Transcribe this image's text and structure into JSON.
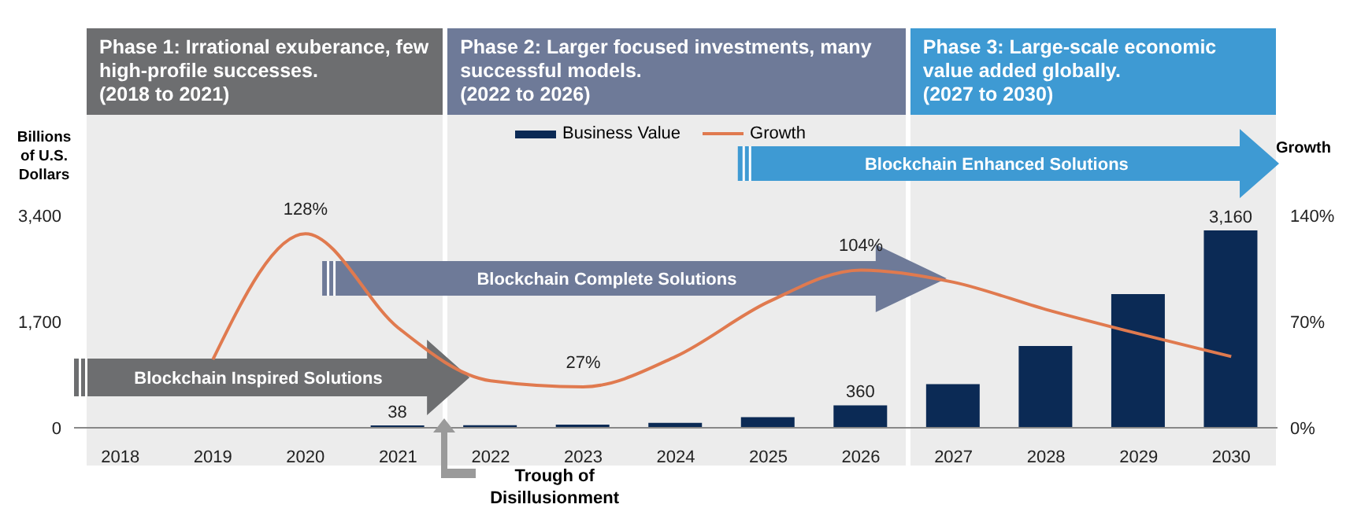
{
  "chart_data": {
    "type": "bar",
    "categories": [
      "2018",
      "2019",
      "2020",
      "2021",
      "2022",
      "2023",
      "2024",
      "2025",
      "2026",
      "2027",
      "2028",
      "2029",
      "2030"
    ],
    "series": [
      {
        "name": "Business Value",
        "color": "#0b2a55",
        "values": [
          null,
          null,
          null,
          38,
          40,
          50,
          80,
          170,
          360,
          700,
          1310,
          2140,
          3160
        ],
        "value_labels": [
          null,
          null,
          null,
          "38",
          null,
          null,
          null,
          null,
          "360",
          null,
          null,
          null,
          "3,160"
        ]
      },
      {
        "name": "Growth",
        "type": "line",
        "axis": "y2",
        "color": "#e07a4f",
        "values": [
          null,
          45,
          128,
          66,
          31,
          27,
          47,
          83,
          104,
          96,
          78,
          62,
          47
        ],
        "value_labels": [
          null,
          null,
          "128%",
          null,
          null,
          "27%",
          null,
          null,
          "104%",
          null,
          null,
          null,
          null
        ]
      }
    ],
    "ylabel": "Billions of U.S. Dollars",
    "y2label": "Growth",
    "ylim": [
      0,
      3400
    ],
    "yticks": [
      0,
      {
        "value": 1700,
        "label": "1,700"
      },
      {
        "value": 3400,
        "label": "3,400"
      }
    ],
    "y2lim": [
      0,
      140
    ],
    "y2ticks": [
      {
        "value": 0,
        "label": "0%"
      },
      {
        "value": 70,
        "label": "70%"
      },
      {
        "value": 140,
        "label": "140%"
      }
    ],
    "legend": "top",
    "annotations": [
      "Blockchain Inspired Solutions",
      "Blockchain Complete Solutions",
      "Blockchain Enhanced Solutions",
      "Trough of Disillusionment",
      "Phase 1: Irrational exuberance, few high-profile successes.\n(2018 to 2021)",
      "Phase 2: Larger focused investments, many successful models.\n(2022 to 2026)",
      "Phase 3: Large-scale economic value added globally.\n(2027 to 2030)"
    ]
  }
}
